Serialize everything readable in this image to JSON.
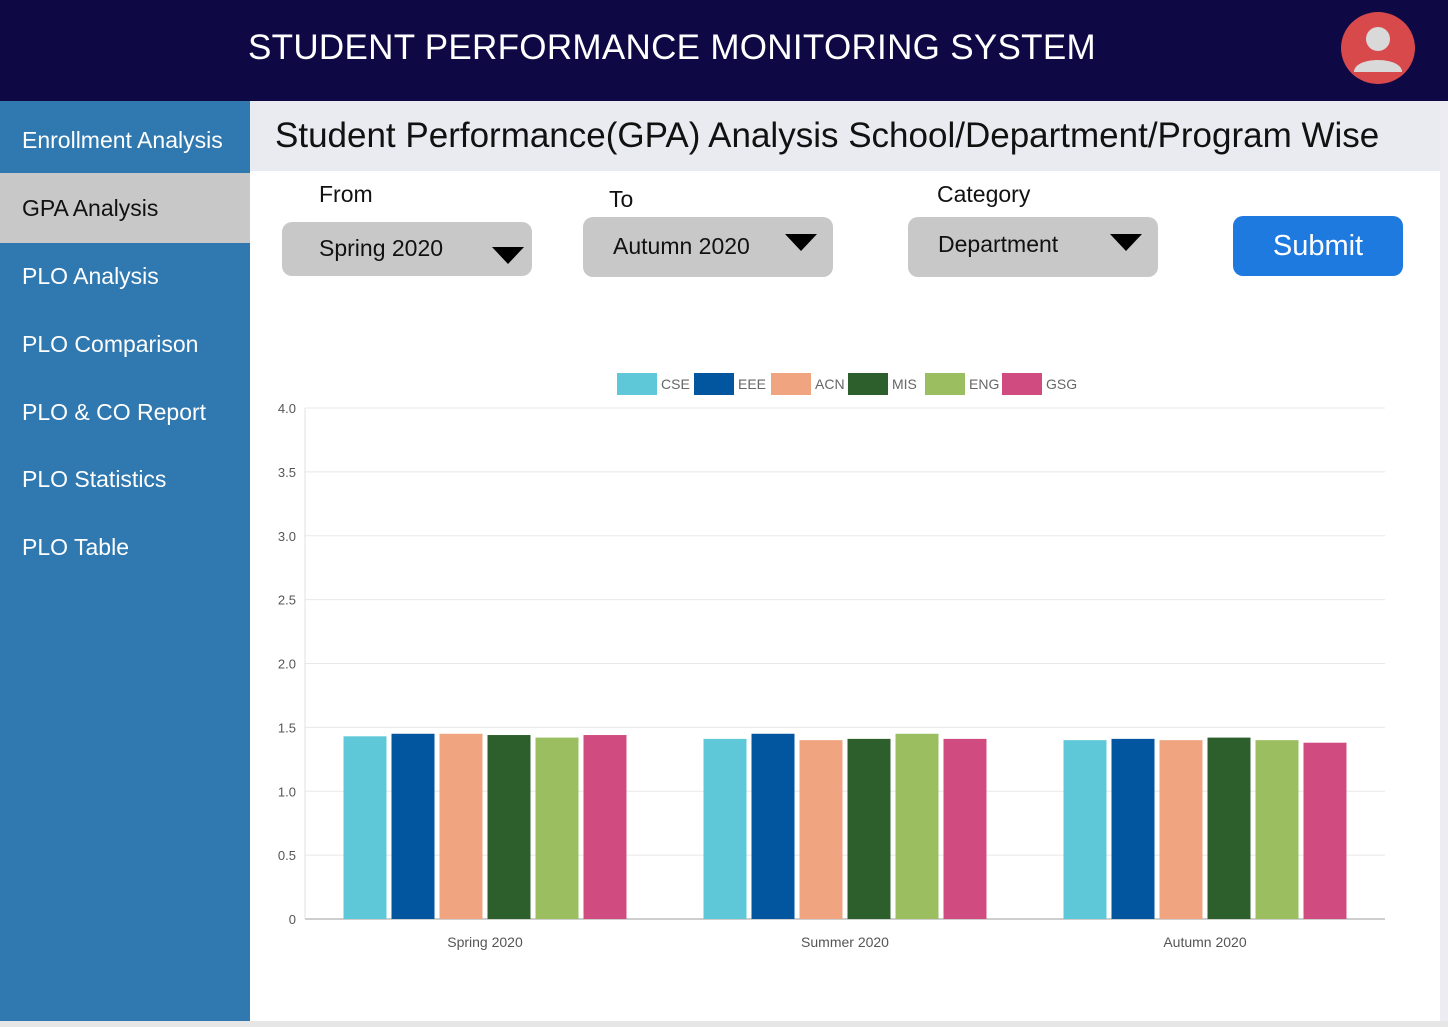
{
  "header": {
    "title": "STUDENT PERFORMANCE MONITORING SYSTEM",
    "avatar_icon": "user-avatar-icon",
    "avatar_color": "#d8494c"
  },
  "sidebar": {
    "items": [
      {
        "label": "Enrollment Analysis",
        "active": false
      },
      {
        "label": "GPA Analysis",
        "active": true
      },
      {
        "label": "PLO Analysis",
        "active": false
      },
      {
        "label": "PLO Comparison",
        "active": false
      },
      {
        "label": "PLO & CO Report",
        "active": false
      },
      {
        "label": "PLO Statistics",
        "active": false
      },
      {
        "label": "PLO Table",
        "active": false
      }
    ]
  },
  "page": {
    "title": "Student Performance(GPA) Analysis School/Department/Program Wise"
  },
  "filters": {
    "from": {
      "label": "From",
      "value": "Spring 2020"
    },
    "to": {
      "label": "To",
      "value": "Autumn 2020"
    },
    "category": {
      "label": "Category",
      "value": "Department"
    },
    "submit_label": "Submit"
  },
  "chart_data": {
    "type": "bar",
    "title": "",
    "xlabel": "",
    "ylabel": "",
    "categories": [
      "Spring 2020",
      "Summer 2020",
      "Autumn 2020"
    ],
    "ylim": [
      0,
      4.0
    ],
    "yticks": [
      "0",
      "0.5",
      "1.0",
      "1.5",
      "2.0",
      "2.5",
      "3.0",
      "3.5",
      "4.0"
    ],
    "grid": true,
    "legend": "top-center",
    "series": [
      {
        "name": "CSE",
        "color": "#5ec8d8",
        "values": [
          1.43,
          1.41,
          1.4
        ]
      },
      {
        "name": "EEE",
        "color": "#02569f",
        "values": [
          1.45,
          1.45,
          1.41
        ]
      },
      {
        "name": "ACN",
        "color": "#f0a47f",
        "values": [
          1.45,
          1.4,
          1.4
        ]
      },
      {
        "name": "MIS",
        "color": "#2c5f2c",
        "values": [
          1.44,
          1.41,
          1.42
        ]
      },
      {
        "name": "ENG",
        "color": "#9bbe61",
        "values": [
          1.42,
          1.45,
          1.4
        ]
      },
      {
        "name": "GSG",
        "color": "#d04b80",
        "values": [
          1.44,
          1.41,
          1.38
        ]
      }
    ]
  }
}
